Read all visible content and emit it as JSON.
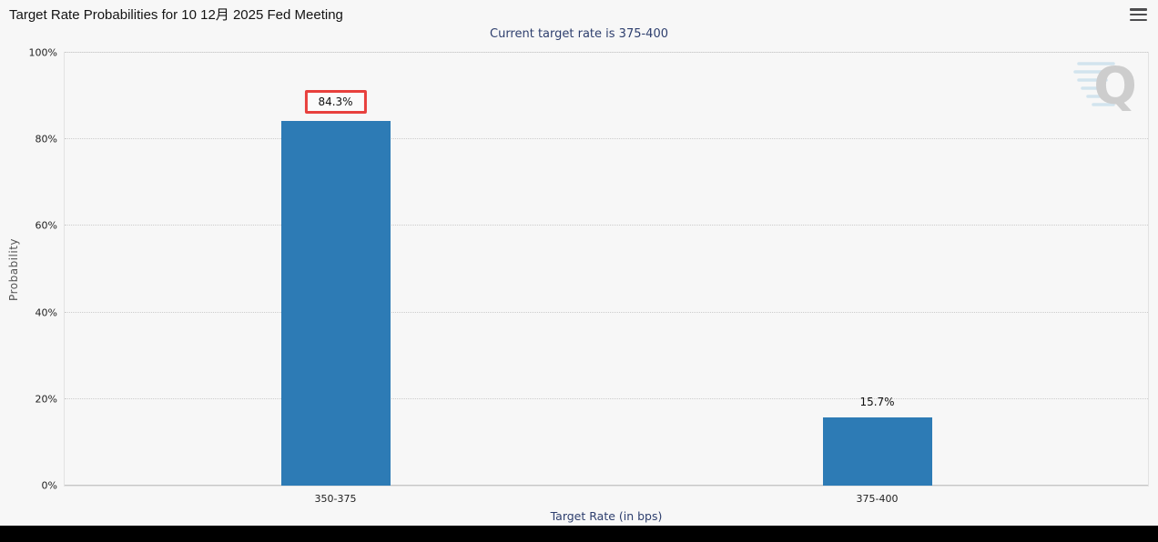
{
  "header": {
    "title": "Target Rate Probabilities for 10 12月 2025 Fed Meeting"
  },
  "subtitle": "Current target rate is 375-400",
  "chart_data": {
    "type": "bar",
    "title": "Target Rate Probabilities for 10 12月 2025 Fed Meeting",
    "subtitle": "Current target rate is 375-400",
    "categories": [
      "350-375",
      "375-400"
    ],
    "values": [
      84.3,
      15.7
    ],
    "value_labels": [
      "84.3%",
      "15.7%"
    ],
    "highlighted_index": 0,
    "xlabel": "Target Rate (in bps)",
    "ylabel": "Probability",
    "ylim": [
      0,
      100
    ],
    "yticks": [
      "0%",
      "20%",
      "40%",
      "60%",
      "80%",
      "100%"
    ],
    "grid": "horizontal-dotted",
    "legend": "none",
    "bar_color": "#2d7bb5",
    "highlight_border_color": "#e8403d"
  },
  "watermark": {
    "letter": "Q"
  },
  "icons": {
    "menu": "hamburger-icon"
  }
}
